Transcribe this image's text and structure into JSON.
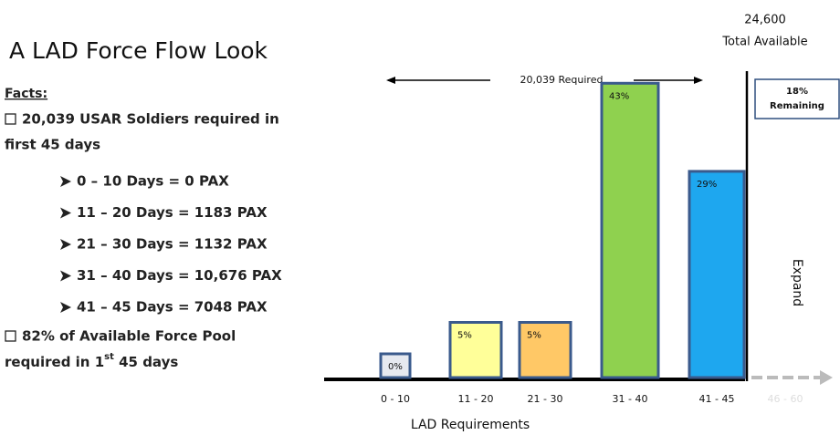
{
  "facts": {
    "heading": "Facts:",
    "items": [
      {
        "lines": [
          "20,039 USAR Soldiers required in",
          "first 45 days"
        ]
      },
      {
        "lines": [
          "82% of Available Force Pool"
        ],
        "last": [
          "required in 1",
          "st",
          " 45 days"
        ]
      }
    ],
    "subitems": [
      "0 – 10 Days = 0 PAX",
      "11 – 20 Days = 1183 PAX",
      "21 – 30 Days = 1132 PAX",
      "31 – 40 Days = 10,676 PAX",
      "41 – 45 Days = 7048 PAX"
    ]
  },
  "chart_data": {
    "type": "bar",
    "title": "A LAD Force Flow Look",
    "categories": [
      "0 - 10",
      "11 - 20",
      "21 - 30",
      "31 - 40",
      "41 - 45"
    ],
    "values": [
      0,
      5,
      5,
      43,
      29
    ],
    "value_labels": [
      "0%",
      "5%",
      "5%",
      "43%",
      "29%"
    ],
    "colors": [
      "#e6e9f0",
      "#ffff99",
      "#ffc866",
      "#8fd14f",
      "#1ea7ef"
    ],
    "xlabel": "LAD Requirements",
    "annotations": {
      "total": "24,600",
      "total_label": "Total Available",
      "required": "20,039 Required",
      "remaining": "18%",
      "remaining_label": "Remaining",
      "expand": "Expand",
      "next": "46 - 60"
    }
  }
}
